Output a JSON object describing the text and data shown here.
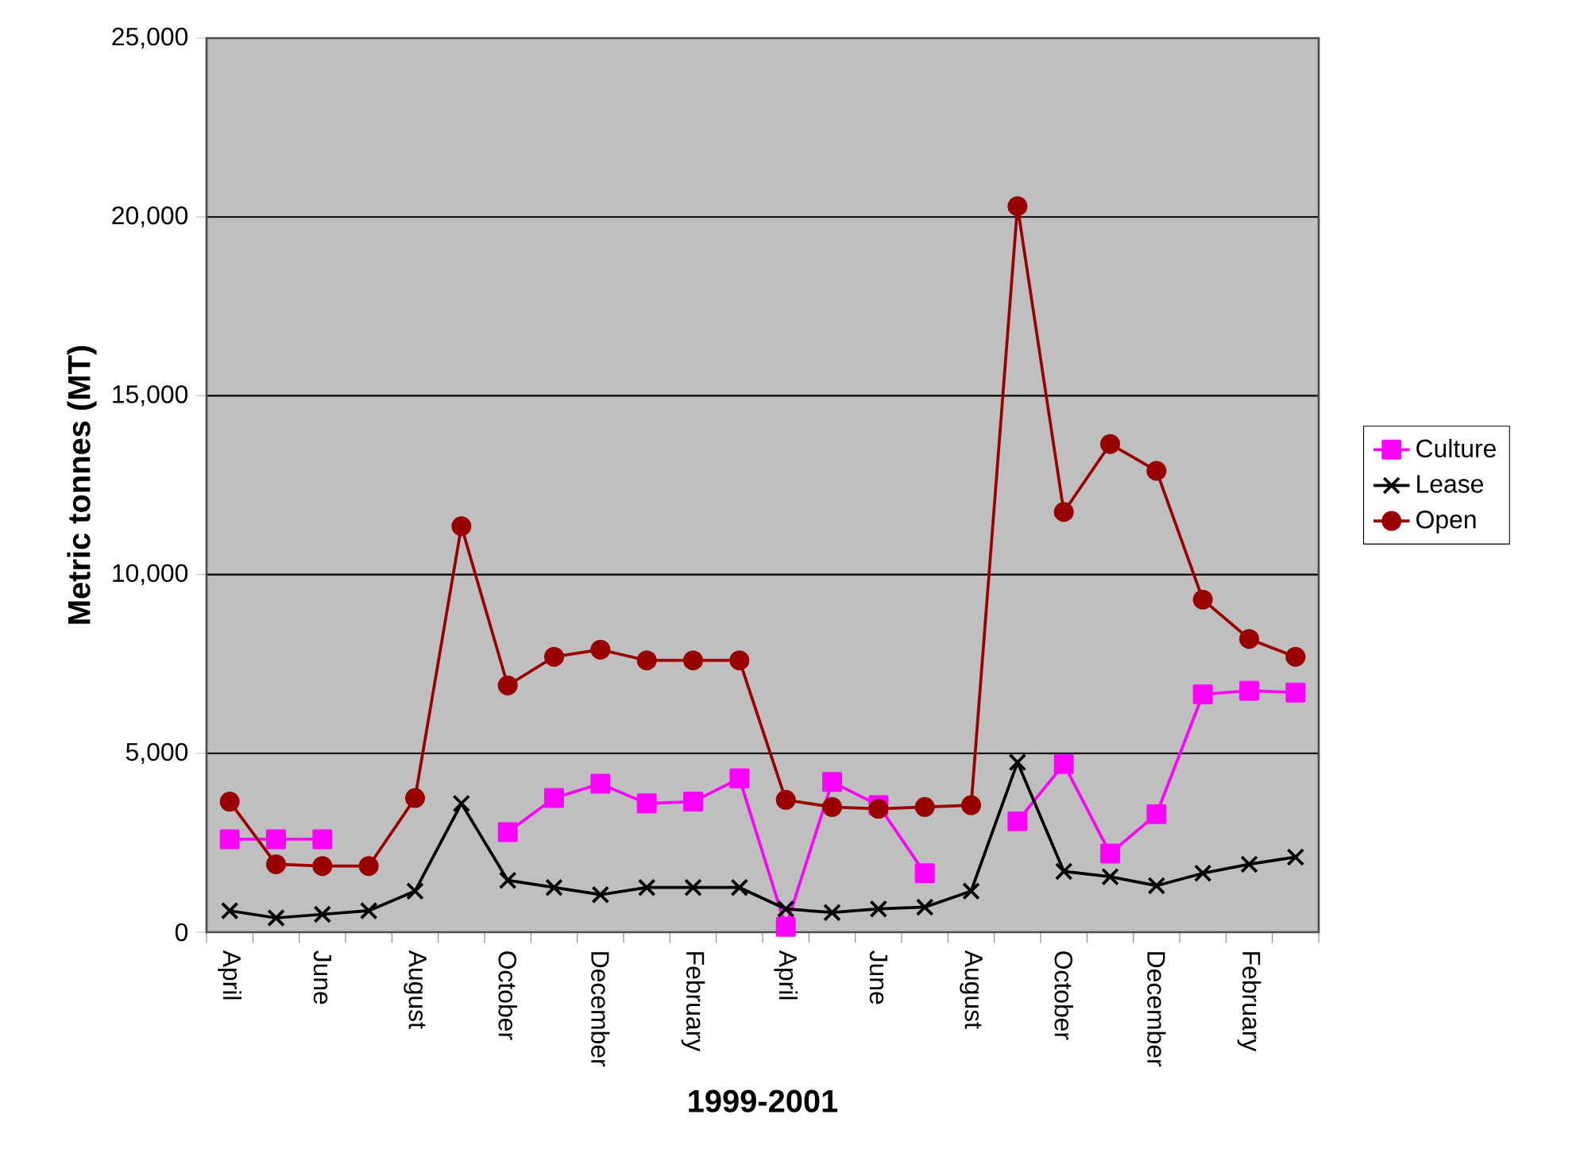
{
  "chart_data": {
    "type": "line",
    "xlabel": "1999-2001",
    "ylabel": "Metric tonnes (MT)",
    "categories": [
      "April",
      null,
      "June",
      null,
      "August",
      null,
      "October",
      null,
      "December",
      null,
      "February",
      null,
      "April",
      null,
      "June",
      null,
      "August",
      null,
      "October",
      null,
      "December",
      null,
      "February",
      null
    ],
    "series": [
      {
        "name": "Culture",
        "color": "#ff00ff",
        "marker": "square",
        "values": [
          2600,
          2600,
          2600,
          null,
          null,
          null,
          2800,
          3750,
          4150,
          3600,
          3650,
          4300,
          150,
          4200,
          3550,
          1650,
          null,
          3100,
          4700,
          2200,
          3300,
          6650,
          6750,
          6700
        ]
      },
      {
        "name": "Lease",
        "color": "#000000",
        "marker": "cross",
        "values": [
          600,
          400,
          500,
          600,
          1150,
          3600,
          1450,
          1250,
          1050,
          1250,
          1250,
          1250,
          650,
          550,
          650,
          700,
          1150,
          4750,
          1700,
          1550,
          1300,
          1650,
          1900,
          2100
        ]
      },
      {
        "name": "Open",
        "color": "#990000",
        "marker": "circle",
        "values": [
          3650,
          1900,
          1850,
          1850,
          3750,
          11350,
          6900,
          7700,
          7900,
          7600,
          7600,
          7600,
          3700,
          3500,
          3450,
          3500,
          3550,
          20300,
          11750,
          13650,
          12900,
          9300,
          8200,
          7700
        ]
      }
    ],
    "ylim": [
      0,
      25000
    ],
    "yticks": [
      0,
      {
        "value": 5000,
        "label": "5,000"
      },
      {
        "value": 10000,
        "label": "10,000"
      },
      {
        "value": 15000,
        "label": "15,000"
      },
      {
        "value": 20000,
        "label": "20,000"
      },
      {
        "value": 25000,
        "label": "25,000"
      }
    ],
    "grid": "y",
    "legend": "right",
    "line_style": "solid"
  }
}
